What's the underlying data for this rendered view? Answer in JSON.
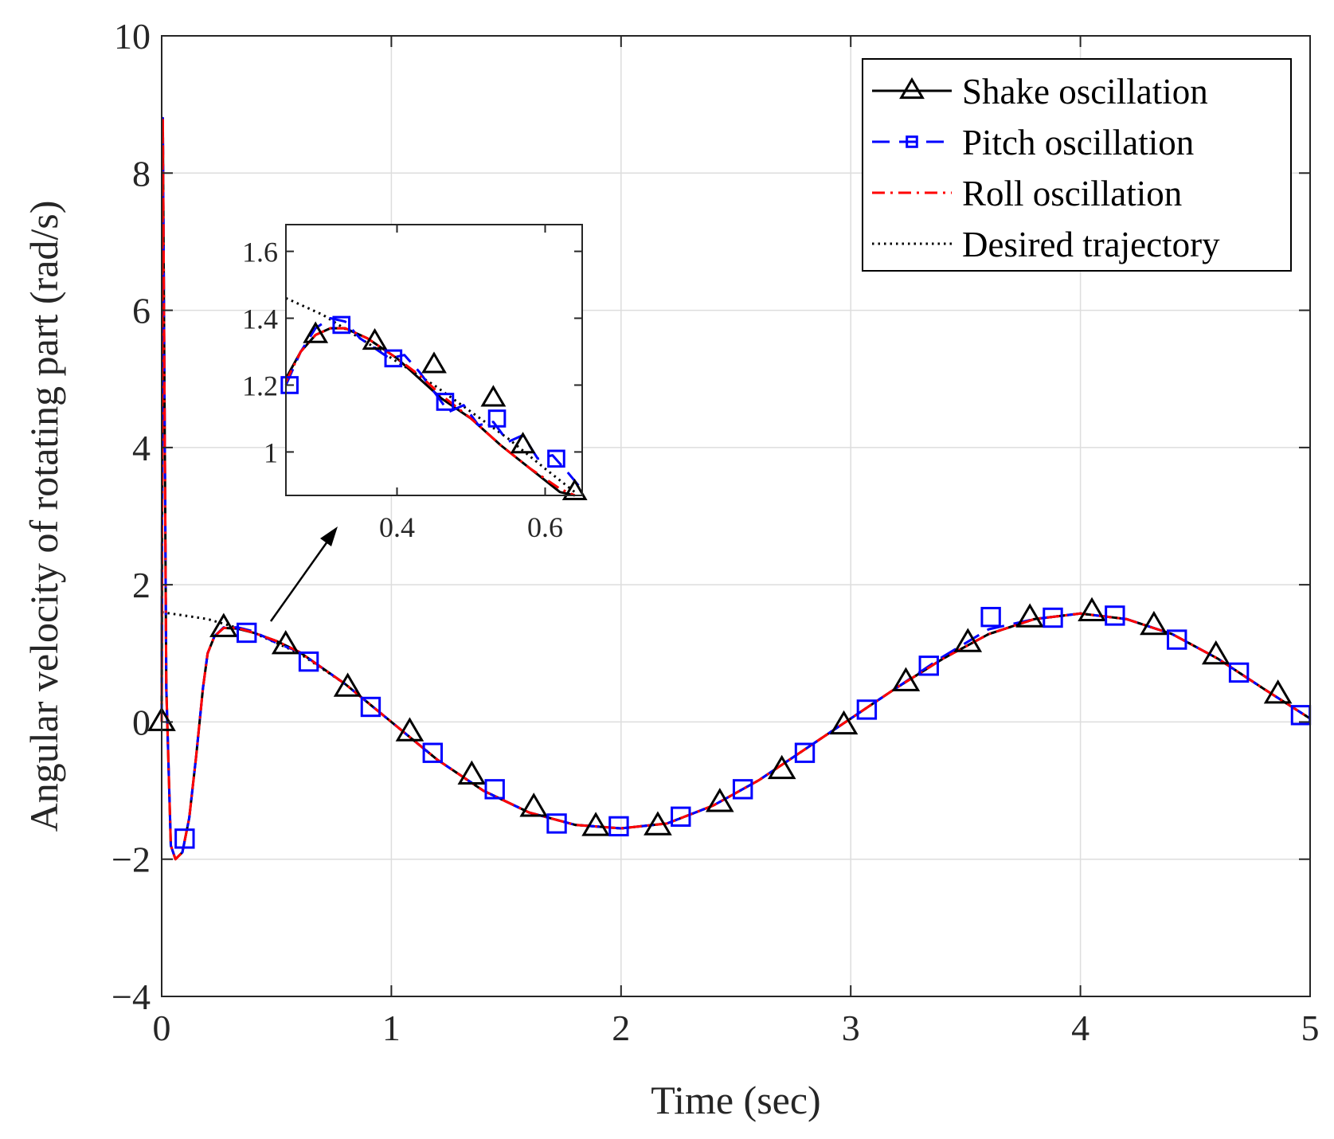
{
  "chart_data": {
    "type": "line",
    "title": "",
    "xlabel": "Time (sec)",
    "ylabel": "Angular velocity of rotating part (rad/s)",
    "xlim": [
      0,
      5
    ],
    "ylim": [
      -4,
      10
    ],
    "grid": true,
    "x_ticks": [
      0,
      1,
      2,
      3,
      4,
      5
    ],
    "x_tick_labels": [
      "0",
      "1",
      "2",
      "3",
      "4",
      "5"
    ],
    "y_ticks": [
      -4,
      -2,
      0,
      2,
      4,
      6,
      8,
      10
    ],
    "y_tick_labels": [
      "−4",
      "−2",
      "0",
      "2",
      "4",
      "6",
      "8",
      "10"
    ],
    "legend": {
      "position": "top-right",
      "entries": [
        "Shake oscillation",
        "Pitch oscillation",
        "Roll oscillation",
        "Desired trajectory"
      ]
    },
    "series": [
      {
        "name": "Shake oscillation",
        "color": "#000000",
        "line": "solid",
        "marker": "triangle",
        "x": [
          0,
          0.005,
          0.02,
          0.04,
          0.06,
          0.09,
          0.12,
          0.15,
          0.18,
          0.2,
          0.23,
          0.27,
          0.33,
          0.4,
          0.5,
          0.6,
          0.8,
          1.0,
          1.2,
          1.4,
          1.6,
          1.8,
          2.0,
          2.2,
          2.4,
          2.6,
          2.8,
          3.0,
          3.2,
          3.4,
          3.6,
          3.8,
          4.0,
          4.2,
          4.4,
          4.6,
          4.8,
          5.0
        ],
        "y": [
          0,
          8.8,
          0.5,
          -1.8,
          -2.0,
          -1.9,
          -1.4,
          -0.5,
          0.5,
          1.0,
          1.25,
          1.37,
          1.36,
          1.3,
          1.18,
          1.02,
          0.55,
          0.0,
          -0.55,
          -1.0,
          -1.32,
          -1.5,
          -1.55,
          -1.48,
          -1.22,
          -0.85,
          -0.4,
          0.05,
          0.5,
          0.92,
          1.28,
          1.5,
          1.58,
          1.5,
          1.28,
          0.92,
          0.48,
          0.05
        ],
        "marker_x": [
          0,
          0.27,
          0.54,
          0.81,
          1.08,
          1.35,
          1.62,
          1.89,
          2.16,
          2.43,
          2.7,
          2.97,
          3.24,
          3.51,
          3.78,
          4.05,
          4.32,
          4.59,
          4.86
        ],
        "marker_y": [
          0,
          1.37,
          1.12,
          0.5,
          -0.15,
          -0.78,
          -1.25,
          -1.53,
          -1.52,
          -1.18,
          -0.7,
          -0.05,
          0.58,
          1.15,
          1.51,
          1.6,
          1.4,
          0.97,
          0.4
        ]
      },
      {
        "name": "Pitch oscillation",
        "color": "#0000ff",
        "line": "dashed",
        "marker": "square",
        "x": [
          0,
          0.005,
          0.02,
          0.04,
          0.06,
          0.09,
          0.12,
          0.15,
          0.18,
          0.2,
          0.23,
          0.27,
          0.33,
          0.4,
          0.5,
          0.6,
          0.8,
          1.0,
          1.2,
          1.4,
          1.6,
          1.8,
          2.0,
          2.2,
          2.4,
          2.6,
          2.8,
          3.0,
          3.2,
          3.4,
          3.6,
          3.8,
          4.0,
          4.2,
          4.4,
          4.6,
          4.8,
          5.0
        ],
        "y": [
          0,
          8.8,
          0.5,
          -1.8,
          -2.0,
          -1.9,
          -1.4,
          -0.5,
          0.5,
          1.0,
          1.25,
          1.38,
          1.38,
          1.32,
          1.15,
          1.02,
          0.55,
          0.0,
          -0.55,
          -1.0,
          -1.32,
          -1.5,
          -1.55,
          -1.48,
          -1.22,
          -0.85,
          -0.4,
          0.05,
          0.5,
          0.95,
          1.35,
          1.5,
          1.58,
          1.5,
          1.28,
          0.92,
          0.48,
          0.05
        ],
        "marker_x": [
          0.1,
          0.37,
          0.64,
          0.91,
          1.18,
          1.45,
          1.72,
          1.99,
          2.26,
          2.53,
          2.8,
          3.07,
          3.34,
          3.61,
          3.88,
          4.15,
          4.42,
          4.69,
          4.96
        ],
        "marker_y": [
          -1.7,
          1.3,
          0.88,
          0.22,
          -0.45,
          -0.98,
          -1.48,
          -1.52,
          -1.38,
          -0.98,
          -0.45,
          0.18,
          0.82,
          1.53,
          1.52,
          1.55,
          1.2,
          0.72,
          0.1
        ]
      },
      {
        "name": "Roll oscillation",
        "color": "#ff0000",
        "line": "dashdot",
        "marker": "none",
        "x": [
          0,
          0.005,
          0.02,
          0.04,
          0.06,
          0.09,
          0.12,
          0.15,
          0.18,
          0.2,
          0.23,
          0.27,
          0.33,
          0.4,
          0.5,
          0.6,
          0.8,
          1.0,
          1.2,
          1.4,
          1.6,
          1.8,
          2.0,
          2.2,
          2.4,
          2.6,
          2.8,
          3.0,
          3.2,
          3.4,
          3.6,
          3.8,
          4.0,
          4.2,
          4.4,
          4.6,
          4.8,
          5.0
        ],
        "y": [
          0,
          8.8,
          0.5,
          -1.8,
          -2.0,
          -1.9,
          -1.4,
          -0.5,
          0.5,
          1.0,
          1.25,
          1.37,
          1.37,
          1.3,
          1.18,
          1.02,
          0.55,
          0.0,
          -0.55,
          -1.0,
          -1.32,
          -1.5,
          -1.55,
          -1.48,
          -1.22,
          -0.85,
          -0.4,
          0.05,
          0.5,
          0.92,
          1.28,
          1.5,
          1.58,
          1.5,
          1.28,
          0.92,
          0.48,
          0.05
        ]
      },
      {
        "name": "Desired trajectory",
        "color": "#000000",
        "line": "dotted",
        "marker": "none",
        "x": [
          0,
          0.2,
          0.4,
          0.6,
          0.8,
          1.0,
          1.2,
          1.4,
          1.6,
          1.8,
          2.0,
          2.2,
          2.4,
          2.6,
          2.8,
          3.0,
          3.2,
          3.4,
          3.6,
          3.8,
          4.0,
          4.2,
          4.4,
          4.6,
          4.8,
          5.0
        ],
        "y": [
          1.6,
          1.5,
          1.3,
          1.0,
          0.55,
          0.0,
          -0.55,
          -1.0,
          -1.32,
          -1.5,
          -1.55,
          -1.48,
          -1.22,
          -0.85,
          -0.4,
          0.05,
          0.5,
          0.92,
          1.28,
          1.5,
          1.58,
          1.5,
          1.28,
          0.92,
          0.48,
          0.05
        ]
      }
    ],
    "inset": {
      "xlim": [
        0.25,
        0.65
      ],
      "ylim": [
        0.87,
        1.68
      ],
      "x_ticks": [
        0.4,
        0.6
      ],
      "x_tick_labels": [
        "0.4",
        "0.6"
      ],
      "y_ticks": [
        1.0,
        1.2,
        1.4,
        1.6
      ],
      "y_tick_labels": [
        "1",
        "1.2",
        "1.4",
        "1.6"
      ],
      "annotation": "arrow from main curve near t = 0.5 to inset",
      "series": [
        {
          "name": "Shake oscillation",
          "x": [
            0.25,
            0.27,
            0.29,
            0.31,
            0.33,
            0.36,
            0.4,
            0.43,
            0.46,
            0.5,
            0.54,
            0.58,
            0.62,
            0.64
          ],
          "y": [
            1.22,
            1.3,
            1.35,
            1.37,
            1.37,
            1.34,
            1.28,
            1.22,
            1.16,
            1.1,
            1.02,
            0.95,
            0.88,
            0.87
          ],
          "marker_x": [
            0.29,
            0.37,
            0.45,
            0.53,
            0.57,
            0.64
          ],
          "marker_y": [
            1.35,
            1.33,
            1.26,
            1.16,
            1.02,
            0.88
          ]
        },
        {
          "name": "Pitch oscillation",
          "x": [
            0.25,
            0.27,
            0.29,
            0.31,
            0.33,
            0.35,
            0.37,
            0.39,
            0.41,
            0.43,
            0.45,
            0.47,
            0.49,
            0.51,
            0.53,
            0.55,
            0.57,
            0.59,
            0.61,
            0.63,
            0.645
          ],
          "y": [
            1.2,
            1.3,
            1.37,
            1.4,
            1.39,
            1.34,
            1.31,
            1.28,
            1.29,
            1.24,
            1.18,
            1.12,
            1.14,
            1.08,
            1.09,
            1.03,
            1.05,
            0.98,
            0.99,
            0.94,
            0.9
          ],
          "marker_x": [
            0.255,
            0.325,
            0.395,
            0.465,
            0.535,
            0.615
          ],
          "marker_y": [
            1.2,
            1.38,
            1.28,
            1.15,
            1.1,
            0.98
          ]
        },
        {
          "name": "Roll oscillation",
          "x": [
            0.25,
            0.27,
            0.29,
            0.31,
            0.33,
            0.36,
            0.4,
            0.43,
            0.46,
            0.5,
            0.54,
            0.58,
            0.62,
            0.64
          ],
          "y": [
            1.21,
            1.3,
            1.35,
            1.37,
            1.37,
            1.34,
            1.28,
            1.23,
            1.17,
            1.1,
            1.02,
            0.95,
            0.89,
            0.87
          ],
          "marker_x": [],
          "marker_y": []
        },
        {
          "name": "Desired trajectory",
          "x": [
            0.25,
            0.3,
            0.35,
            0.4,
            0.45,
            0.5,
            0.55,
            0.6,
            0.64
          ],
          "y": [
            1.46,
            1.41,
            1.34,
            1.27,
            1.2,
            1.12,
            1.04,
            0.95,
            0.88
          ],
          "marker_x": [],
          "marker_y": []
        }
      ]
    }
  }
}
